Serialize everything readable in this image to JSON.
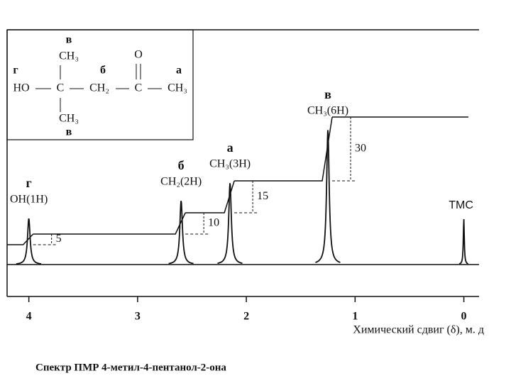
{
  "chart_data": {
    "type": "nmr",
    "x_label": "Химический сдвиг (δ), м. д",
    "caption": "Спектр ПМР 4-метил-4-пентанол-2-она",
    "xlim": [
      4.2,
      -0.14
    ],
    "xticks": [
      4,
      3,
      2,
      1,
      0
    ],
    "peaks": [
      {
        "x": 4.0,
        "letter": "г",
        "group": "OH(1H)",
        "integral": 5
      },
      {
        "x": 2.6,
        "letter": "б",
        "group": "CH₂(2H)",
        "integral": 10
      },
      {
        "x": 2.15,
        "letter": "а",
        "group": "CH₃(3H)",
        "integral": 15
      },
      {
        "x": 1.25,
        "letter": "в",
        "group": "CH₃(6H)",
        "integral": 30
      }
    ],
    "reference": {
      "x": 0,
      "label": "ТМС"
    },
    "structure": {
      "top_letter": "в",
      "top_group": "CH₃",
      "left_letter": "г",
      "mid_letter": "б",
      "right_letter": "а",
      "oxygen": "O",
      "chain": [
        "HO",
        "C",
        "CH₂",
        "C",
        "CH₃"
      ],
      "bottom_group": "CH₃",
      "bottom_letter": "в"
    }
  }
}
